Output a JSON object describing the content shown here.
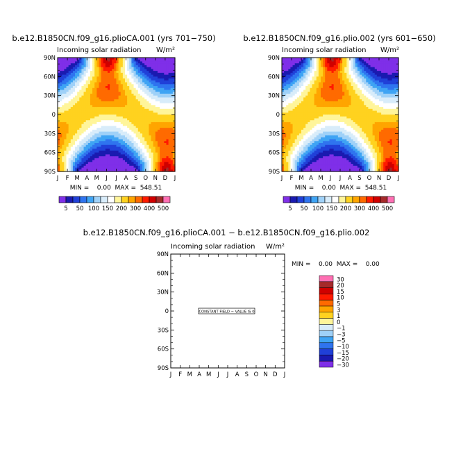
{
  "chart_data": [
    {
      "type": "heatmap",
      "title": "b.e12.B1850CN.f09_g16.plioCA.001 (yrs 701−750)",
      "subtitle": "Incoming solar radiation",
      "units": "W/m²",
      "x_ticks": [
        "J",
        "F",
        "M",
        "A",
        "M",
        "J",
        "J",
        "A",
        "S",
        "O",
        "N",
        "D",
        "J"
      ],
      "y_ticks": [
        "90N",
        "60N",
        "30N",
        "0",
        "30S",
        "60S",
        "90S"
      ],
      "stats": "MIN =    0.00  MAX =  548.51",
      "min": 0.0,
      "max": 548.51,
      "legend": [
        "5",
        "50",
        "100",
        "150",
        "200",
        "300",
        "400",
        "500"
      ]
    },
    {
      "type": "heatmap",
      "title": "b.e12.B1850CN.f09_g16.plio.002 (yrs 601−650)",
      "subtitle": "Incoming solar radiation",
      "units": "W/m²",
      "x_ticks": [
        "J",
        "F",
        "M",
        "A",
        "M",
        "J",
        "J",
        "A",
        "S",
        "O",
        "N",
        "D",
        "J"
      ],
      "y_ticks": [
        "90N",
        "60N",
        "30N",
        "0",
        "30S",
        "60S",
        "90S"
      ],
      "stats": "MIN =    0.00  MAX =  548.51",
      "min": 0.0,
      "max": 548.51,
      "legend": [
        "5",
        "50",
        "100",
        "150",
        "200",
        "300",
        "400",
        "500"
      ]
    },
    {
      "type": "heatmap",
      "title": "b.e12.B1850CN.f09_g16.plioCA.001 − b.e12.B1850CN.f09_g16.plio.002",
      "subtitle": "Incoming solar radiation",
      "units": "W/m²",
      "x_ticks": [
        "J",
        "F",
        "M",
        "A",
        "M",
        "J",
        "J",
        "A",
        "S",
        "O",
        "N",
        "D",
        "J"
      ],
      "y_ticks": [
        "90N",
        "60N",
        "30N",
        "0",
        "30S",
        "60S",
        "90S"
      ],
      "stats": "MIN =    0.00  MAX =    0.00",
      "min": 0.0,
      "max": 0.0,
      "annotation": "CONSTANT FIELD − VALUE IS 0",
      "legend": [
        "30",
        "20",
        "15",
        "10",
        "5",
        "3",
        "1",
        "0",
        "−1",
        "−3",
        "−5",
        "−10",
        "−15",
        "−20",
        "−30"
      ]
    }
  ],
  "colors": {
    "insol_scale": [
      "#7f2fe8",
      "#1a1ab0",
      "#2040d8",
      "#2f74ef",
      "#3fa4f4",
      "#9fd1f8",
      "#d8ecfa",
      "#ffffff",
      "#fff59a",
      "#ffd21f",
      "#ffa500",
      "#ff6a00",
      "#ff1a00",
      "#d00000",
      "#a52a2a",
      "#ff6fb3"
    ],
    "diff_scale": [
      "#ff6fb3",
      "#a52a2a",
      "#d00000",
      "#ff1a00",
      "#ff6a00",
      "#ffa500",
      "#ffd21f",
      "#fff59a",
      "#d8ecfa",
      "#9fd1f8",
      "#3fa4f4",
      "#2f74ef",
      "#2040d8",
      "#1a1ab0",
      "#7f2fe8"
    ]
  }
}
